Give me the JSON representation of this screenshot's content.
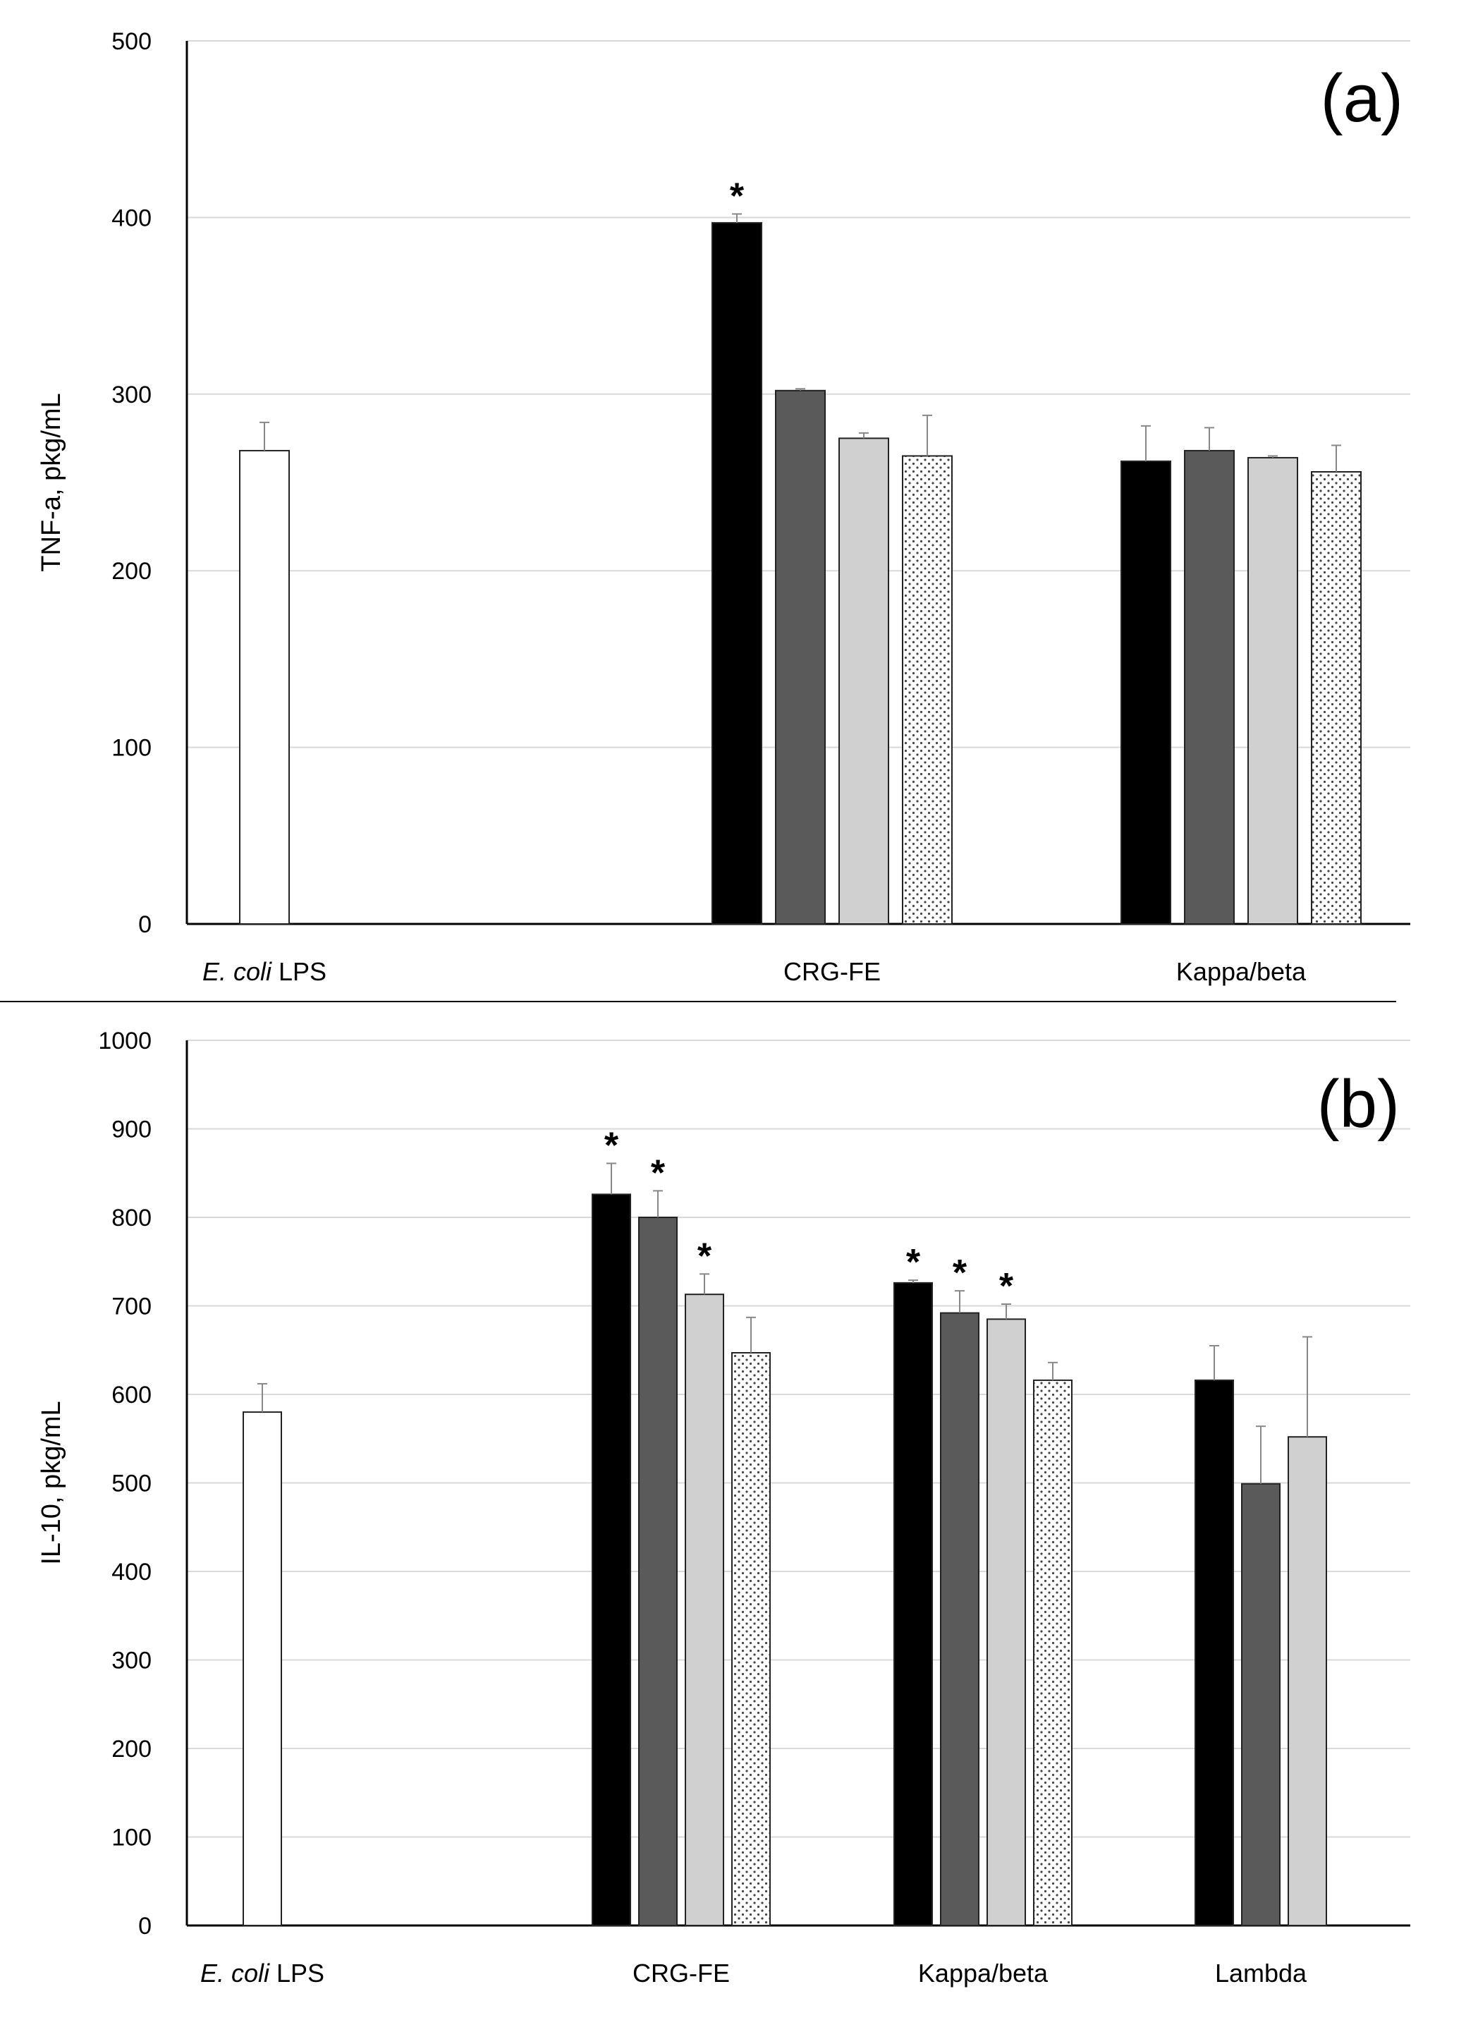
{
  "chart_data": [
    {
      "type": "bar",
      "panel_label": "(a)",
      "ylabel": "TNF-a, pkg/mL",
      "xlabel": "",
      "ylim": [
        0,
        500
      ],
      "yticks": [
        0,
        100,
        200,
        300,
        400,
        500
      ],
      "grid": true,
      "categories": [
        {
          "label": "E. coli",
          "label_suffix": " LPS",
          "italic_part": true
        },
        {
          "label": "CRG-FE"
        },
        {
          "label": "Kappa/beta"
        }
      ],
      "bars": [
        {
          "group": 0,
          "slot": 0,
          "value": 268,
          "error": 16,
          "fill": "white",
          "star": false
        },
        {
          "group": 1,
          "slot": 0,
          "value": 397,
          "error": 5,
          "fill": "black",
          "star": true
        },
        {
          "group": 1,
          "slot": 1,
          "value": 302,
          "error": 1,
          "fill": "darkgray",
          "star": false
        },
        {
          "group": 1,
          "slot": 2,
          "value": 275,
          "error": 3,
          "fill": "lightgray",
          "star": false
        },
        {
          "group": 1,
          "slot": 3,
          "value": 265,
          "error": 23,
          "fill": "dotted",
          "star": false
        },
        {
          "group": 2,
          "slot": 0,
          "value": 262,
          "error": 20,
          "fill": "black",
          "star": false
        },
        {
          "group": 2,
          "slot": 1,
          "value": 268,
          "error": 13,
          "fill": "darkgray",
          "star": false
        },
        {
          "group": 2,
          "slot": 2,
          "value": 264,
          "error": 1,
          "fill": "lightgray",
          "star": false
        },
        {
          "group": 2,
          "slot": 3,
          "value": 256,
          "error": 15,
          "fill": "dotted",
          "star": false
        }
      ],
      "star_text": "*"
    },
    {
      "type": "bar",
      "panel_label": "(b)",
      "ylabel": "IL-10, pkg/mL",
      "xlabel": "",
      "ylim": [
        0,
        1000
      ],
      "yticks": [
        0,
        100,
        200,
        300,
        400,
        500,
        600,
        700,
        800,
        900,
        1000
      ],
      "grid": true,
      "categories": [
        {
          "label": "E. coli",
          "label_suffix": " LPS",
          "italic_part": true
        },
        {
          "label": "CRG-FE"
        },
        {
          "label": "Kappa/beta"
        },
        {
          "label": "Lambda"
        }
      ],
      "bars": [
        {
          "group": 0,
          "slot": 0,
          "value": 580,
          "error": 32,
          "fill": "white",
          "star": false
        },
        {
          "group": 1,
          "slot": 0,
          "value": 826,
          "error": 35,
          "fill": "black",
          "star": true
        },
        {
          "group": 1,
          "slot": 1,
          "value": 800,
          "error": 30,
          "fill": "darkgray",
          "star": true
        },
        {
          "group": 1,
          "slot": 2,
          "value": 713,
          "error": 23,
          "fill": "lightgray",
          "star": true
        },
        {
          "group": 1,
          "slot": 3,
          "value": 647,
          "error": 40,
          "fill": "dotted",
          "star": false
        },
        {
          "group": 2,
          "slot": 0,
          "value": 726,
          "error": 3,
          "fill": "black",
          "star": true
        },
        {
          "group": 2,
          "slot": 1,
          "value": 692,
          "error": 25,
          "fill": "darkgray",
          "star": true
        },
        {
          "group": 2,
          "slot": 2,
          "value": 685,
          "error": 17,
          "fill": "lightgray",
          "star": true
        },
        {
          "group": 2,
          "slot": 3,
          "value": 616,
          "error": 20,
          "fill": "dotted",
          "star": false
        },
        {
          "group": 3,
          "slot": 0,
          "value": 616,
          "error": 39,
          "fill": "black",
          "star": false
        },
        {
          "group": 3,
          "slot": 1,
          "value": 499,
          "error": 65,
          "fill": "darkgray",
          "star": false
        },
        {
          "group": 3,
          "slot": 2,
          "value": 552,
          "error": 113,
          "fill": "lightgray",
          "star": false
        }
      ],
      "star_text": "*"
    }
  ]
}
